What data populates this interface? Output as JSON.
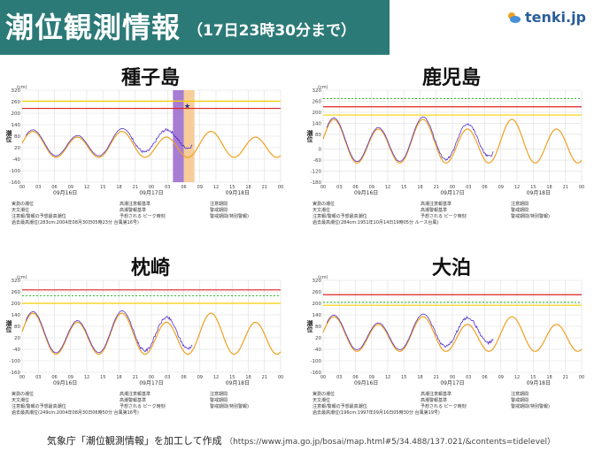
{
  "header": {
    "title": "潮位観測情報",
    "subtitle": "（17日23時30分まで）"
  },
  "brand": {
    "name": "tenki.jp",
    "icon": "sun-cloud-icon"
  },
  "footer": {
    "text": "気象庁「潮位観測情報」を加工して作成",
    "url": "（https://www.jma.go.jp/bosai/map.html#5/34.488/137.021/&contents=tidelevel）"
  },
  "legend": {
    "observed": "実測の潮位",
    "astronomical": "天文潮位",
    "warning_forecast": "注意報/警報の予想最高潮位",
    "alert_level": "高潮注意報基準",
    "warning_level": "高潮警報基準",
    "peak_time": "予想される ピーク時刻",
    "advisory_period": "注意期間",
    "warning_period": "警戒期間",
    "special_period": "警戒期間(特別警報)"
  },
  "chart_data": [
    {
      "type": "line",
      "station": "種子島",
      "ylabel": "潮位",
      "unit": "(cm)",
      "ylim": [
        -160,
        320
      ],
      "yticks": [
        -160,
        -100,
        -40,
        20,
        80,
        140,
        200,
        260,
        320
      ],
      "xticks": [
        "00",
        "03",
        "06",
        "09",
        "12",
        "15",
        "18",
        "21",
        "00",
        "03",
        "06",
        "09",
        "12",
        "15",
        "18",
        "21",
        "00"
      ],
      "dates": [
        "09月16日",
        "09月17日",
        "09月18日"
      ],
      "x_hours": [
        0,
        72
      ],
      "warning_level": 225,
      "alert_level": 263,
      "observed_end_hour": 47.5,
      "tide_mean": 30,
      "tide_amp": 60,
      "surge_peak": 45,
      "advisory_period": [
        42,
        45
      ],
      "warning_period": [
        45,
        48
      ],
      "peak": {
        "hour": 46,
        "value": 240
      },
      "record_note": "過去最高潮位(283cm:2004年08月30日05時23分 台風第16号)"
    },
    {
      "type": "line",
      "station": "鹿児島",
      "ylabel": "潮位",
      "unit": "(cm)",
      "ylim": [
        -180,
        320
      ],
      "yticks": [
        -180,
        -120,
        -60,
        0,
        80,
        140,
        200,
        260,
        320
      ],
      "xticks": [
        "00",
        "03",
        "06",
        "09",
        "12",
        "15",
        "18",
        "21",
        "00",
        "03",
        "06",
        "09",
        "12",
        "15",
        "18",
        "21",
        "00"
      ],
      "dates": [
        "09月16日",
        "09月17日",
        "09月18日"
      ],
      "x_hours": [
        0,
        72
      ],
      "warning_level": 230,
      "alert_level": 185,
      "forecast_level": 275,
      "observed_end_hour": 47.5,
      "tide_mean": 30,
      "tide_amp": 105,
      "surge_peak": 30,
      "record_note": "過去最高潮位(284cm:1951年10月14日19時05分 ルース台風)"
    },
    {
      "type": "line",
      "station": "枕崎",
      "ylabel": "潮位",
      "unit": "(cm)",
      "ylim": [
        -160,
        320
      ],
      "yticks": [
        -160,
        -100,
        -40,
        20,
        80,
        140,
        200,
        260,
        320
      ],
      "xticks": [
        "00",
        "03",
        "06",
        "09",
        "12",
        "15",
        "18",
        "21",
        "00",
        "03",
        "06",
        "09",
        "12",
        "15",
        "18",
        "21",
        "00"
      ],
      "dates": [
        "09月16日",
        "09月17日",
        "09月18日"
      ],
      "x_hours": [
        0,
        72
      ],
      "warning_level": 270,
      "alert_level": 200,
      "forecast_level": 240,
      "observed_end_hour": 47.5,
      "tide_mean": 30,
      "tide_amp": 95,
      "surge_peak": 25,
      "record_note": "過去最高潮位(249cm:2004年08月30日06時50分 台風第16号)"
    },
    {
      "type": "line",
      "station": "大泊",
      "ylabel": "潮位",
      "unit": "(cm)",
      "ylim": [
        -160,
        320
      ],
      "yticks": [
        -160,
        -100,
        -40,
        20,
        80,
        140,
        200,
        260,
        320
      ],
      "xticks": [
        "00",
        "03",
        "06",
        "09",
        "12",
        "15",
        "18",
        "21",
        "00",
        "03",
        "06",
        "09",
        "12",
        "15",
        "18",
        "21",
        "00"
      ],
      "dates": [
        "09月16日",
        "09月17日",
        "09月18日"
      ],
      "x_hours": [
        0,
        72
      ],
      "warning_level": 245,
      "alert_level": 190,
      "forecast_level": 205,
      "observed_end_hour": 47.5,
      "tide_mean": 30,
      "tide_amp": 80,
      "surge_peak": 40,
      "record_note": "過去最高潮位(196cm:1997年09月16日05時30分 台風第19号)"
    }
  ],
  "colors": {
    "observed": "#5533cc",
    "astronomical": "#f0a020",
    "alert": "#f5d000",
    "warning": "#dd2222",
    "forecast": "#22bb22",
    "special": "#9966cc",
    "warnband": "#f5c890",
    "grid": "#dddddd",
    "header": "#2c7a78"
  }
}
